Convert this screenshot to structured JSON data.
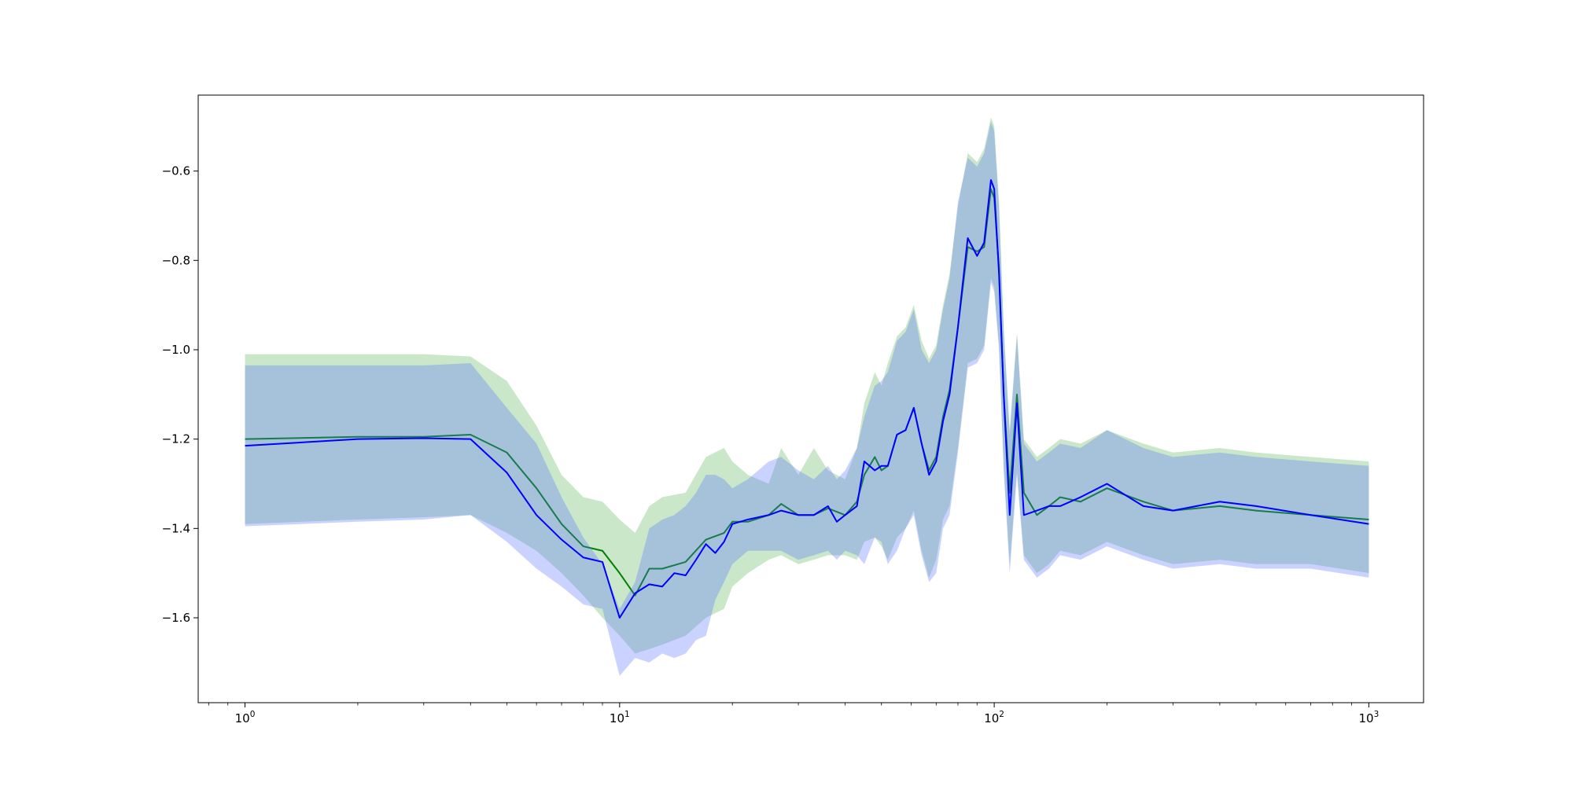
{
  "chart_data": {
    "type": "line",
    "title": "",
    "xlabel": "",
    "ylabel": "",
    "x_scale": "log",
    "xlim": [
      0.75,
      1400
    ],
    "ylim": [
      -1.79,
      -0.43
    ],
    "grid": false,
    "legend": "none",
    "x_ticks": [
      {
        "base": "10",
        "exp": "0",
        "value": 1
      },
      {
        "base": "10",
        "exp": "1",
        "value": 10
      },
      {
        "base": "10",
        "exp": "2",
        "value": 100
      },
      {
        "base": "10",
        "exp": "3",
        "value": 1000
      }
    ],
    "y_ticks": [
      {
        "label": "−0.6",
        "value": -0.6
      },
      {
        "label": "−0.8",
        "value": -0.8
      },
      {
        "label": "−1.0",
        "value": -1.0
      },
      {
        "label": "−1.2",
        "value": -1.2
      },
      {
        "label": "−1.4",
        "value": -1.4
      },
      {
        "label": "−1.6",
        "value": -1.6
      }
    ],
    "series": [
      {
        "color": "#008000",
        "band_color": "#2ca02c",
        "band_opacity": 0.25,
        "x": [
          1,
          2,
          3,
          4,
          5,
          6,
          7,
          8,
          9,
          10,
          11,
          12,
          13,
          15,
          17,
          19,
          20,
          22,
          25,
          27,
          30,
          33,
          36,
          40,
          43,
          45,
          48,
          50,
          52,
          55,
          58,
          61,
          64,
          67,
          70,
          73,
          76,
          80,
          85,
          90,
          94,
          98,
          100,
          103,
          106,
          110,
          115,
          120,
          130,
          140,
          150,
          170,
          200,
          250,
          300,
          400,
          500,
          700,
          1000
        ],
        "values": [
          -1.2,
          -1.195,
          -1.195,
          -1.19,
          -1.23,
          -1.31,
          -1.39,
          -1.44,
          -1.45,
          -1.5,
          -1.55,
          -1.49,
          -1.49,
          -1.475,
          -1.425,
          -1.41,
          -1.385,
          -1.385,
          -1.37,
          -1.345,
          -1.37,
          -1.37,
          -1.355,
          -1.37,
          -1.34,
          -1.28,
          -1.24,
          -1.27,
          -1.26,
          -1.19,
          -1.18,
          -1.13,
          -1.21,
          -1.27,
          -1.24,
          -1.15,
          -1.09,
          -0.95,
          -0.77,
          -0.78,
          -0.77,
          -0.64,
          -0.66,
          -0.82,
          -1.1,
          -1.32,
          -1.1,
          -1.32,
          -1.37,
          -1.35,
          -1.33,
          -1.34,
          -1.31,
          -1.34,
          -1.36,
          -1.35,
          -1.36,
          -1.37,
          -1.38
        ],
        "upper": [
          -1.01,
          -1.01,
          -1.01,
          -1.015,
          -1.07,
          -1.17,
          -1.28,
          -1.33,
          -1.34,
          -1.38,
          -1.41,
          -1.35,
          -1.33,
          -1.32,
          -1.24,
          -1.22,
          -1.25,
          -1.28,
          -1.3,
          -1.22,
          -1.28,
          -1.22,
          -1.27,
          -1.29,
          -1.22,
          -1.12,
          -1.05,
          -1.08,
          -1.03,
          -0.97,
          -0.95,
          -0.9,
          -0.98,
          -1.02,
          -0.99,
          -0.9,
          -0.83,
          -0.68,
          -0.56,
          -0.58,
          -0.55,
          -0.48,
          -0.5,
          -0.67,
          -0.95,
          -1.18,
          -0.96,
          -1.2,
          -1.24,
          -1.22,
          -1.2,
          -1.21,
          -1.18,
          -1.21,
          -1.23,
          -1.22,
          -1.23,
          -1.24,
          -1.25
        ],
        "lower": [
          -1.39,
          -1.38,
          -1.375,
          -1.37,
          -1.41,
          -1.45,
          -1.5,
          -1.55,
          -1.6,
          -1.64,
          -1.68,
          -1.67,
          -1.66,
          -1.64,
          -1.6,
          -1.58,
          -1.53,
          -1.5,
          -1.47,
          -1.46,
          -1.48,
          -1.47,
          -1.46,
          -1.46,
          -1.47,
          -1.43,
          -1.42,
          -1.44,
          -1.47,
          -1.42,
          -1.4,
          -1.36,
          -1.45,
          -1.51,
          -1.47,
          -1.38,
          -1.35,
          -1.22,
          -1.03,
          -1.02,
          -0.99,
          -0.84,
          -0.86,
          -0.99,
          -1.26,
          -1.48,
          -1.27,
          -1.46,
          -1.5,
          -1.48,
          -1.45,
          -1.46,
          -1.43,
          -1.46,
          -1.48,
          -1.47,
          -1.48,
          -1.48,
          -1.5
        ]
      },
      {
        "color": "#0000ff",
        "band_color": "#4f6cff",
        "band_opacity": 0.3,
        "x": [
          1,
          2,
          3,
          4,
          5,
          6,
          7,
          8,
          9,
          10,
          11,
          12,
          13,
          14,
          15,
          16,
          17,
          18,
          19,
          20,
          22,
          25,
          27,
          30,
          33,
          36,
          38,
          40,
          43,
          45,
          48,
          50,
          52,
          55,
          58,
          61,
          64,
          67,
          70,
          73,
          76,
          80,
          85,
          90,
          94,
          98,
          100,
          103,
          106,
          110,
          115,
          120,
          130,
          140,
          150,
          170,
          200,
          250,
          300,
          400,
          500,
          700,
          1000
        ],
        "values": [
          -1.215,
          -1.2,
          -1.198,
          -1.2,
          -1.275,
          -1.37,
          -1.425,
          -1.465,
          -1.475,
          -1.6,
          -1.545,
          -1.525,
          -1.53,
          -1.5,
          -1.505,
          -1.47,
          -1.435,
          -1.455,
          -1.43,
          -1.39,
          -1.38,
          -1.37,
          -1.36,
          -1.37,
          -1.37,
          -1.35,
          -1.385,
          -1.37,
          -1.35,
          -1.25,
          -1.27,
          -1.26,
          -1.26,
          -1.19,
          -1.18,
          -1.13,
          -1.21,
          -1.28,
          -1.25,
          -1.16,
          -1.1,
          -0.95,
          -0.75,
          -0.79,
          -0.76,
          -0.62,
          -0.64,
          -0.83,
          -1.1,
          -1.37,
          -1.12,
          -1.37,
          -1.36,
          -1.35,
          -1.35,
          -1.33,
          -1.3,
          -1.35,
          -1.36,
          -1.34,
          -1.35,
          -1.37,
          -1.39
        ],
        "upper": [
          -1.035,
          -1.035,
          -1.035,
          -1.03,
          -1.13,
          -1.21,
          -1.33,
          -1.42,
          -1.48,
          -1.58,
          -1.52,
          -1.4,
          -1.38,
          -1.37,
          -1.35,
          -1.32,
          -1.28,
          -1.28,
          -1.29,
          -1.31,
          -1.29,
          -1.25,
          -1.24,
          -1.27,
          -1.29,
          -1.26,
          -1.29,
          -1.27,
          -1.22,
          -1.15,
          -1.08,
          -1.07,
          -1.05,
          -0.98,
          -0.96,
          -0.91,
          -1.0,
          -1.03,
          -1.0,
          -0.91,
          -0.84,
          -0.67,
          -0.57,
          -0.59,
          -0.56,
          -0.49,
          -0.51,
          -0.68,
          -0.96,
          -1.19,
          -0.97,
          -1.21,
          -1.25,
          -1.23,
          -1.21,
          -1.22,
          -1.18,
          -1.22,
          -1.24,
          -1.23,
          -1.24,
          -1.25,
          -1.26
        ],
        "lower": [
          -1.395,
          -1.385,
          -1.38,
          -1.37,
          -1.43,
          -1.49,
          -1.53,
          -1.57,
          -1.58,
          -1.73,
          -1.69,
          -1.7,
          -1.68,
          -1.69,
          -1.68,
          -1.65,
          -1.64,
          -1.56,
          -1.52,
          -1.48,
          -1.45,
          -1.45,
          -1.45,
          -1.47,
          -1.46,
          -1.45,
          -1.47,
          -1.45,
          -1.46,
          -1.48,
          -1.42,
          -1.43,
          -1.48,
          -1.45,
          -1.4,
          -1.37,
          -1.46,
          -1.52,
          -1.5,
          -1.4,
          -1.37,
          -1.23,
          -1.04,
          -1.03,
          -1.0,
          -0.85,
          -0.87,
          -1.0,
          -1.27,
          -1.5,
          -1.28,
          -1.47,
          -1.51,
          -1.49,
          -1.46,
          -1.47,
          -1.44,
          -1.47,
          -1.49,
          -1.48,
          -1.49,
          -1.49,
          -1.51
        ]
      }
    ]
  }
}
